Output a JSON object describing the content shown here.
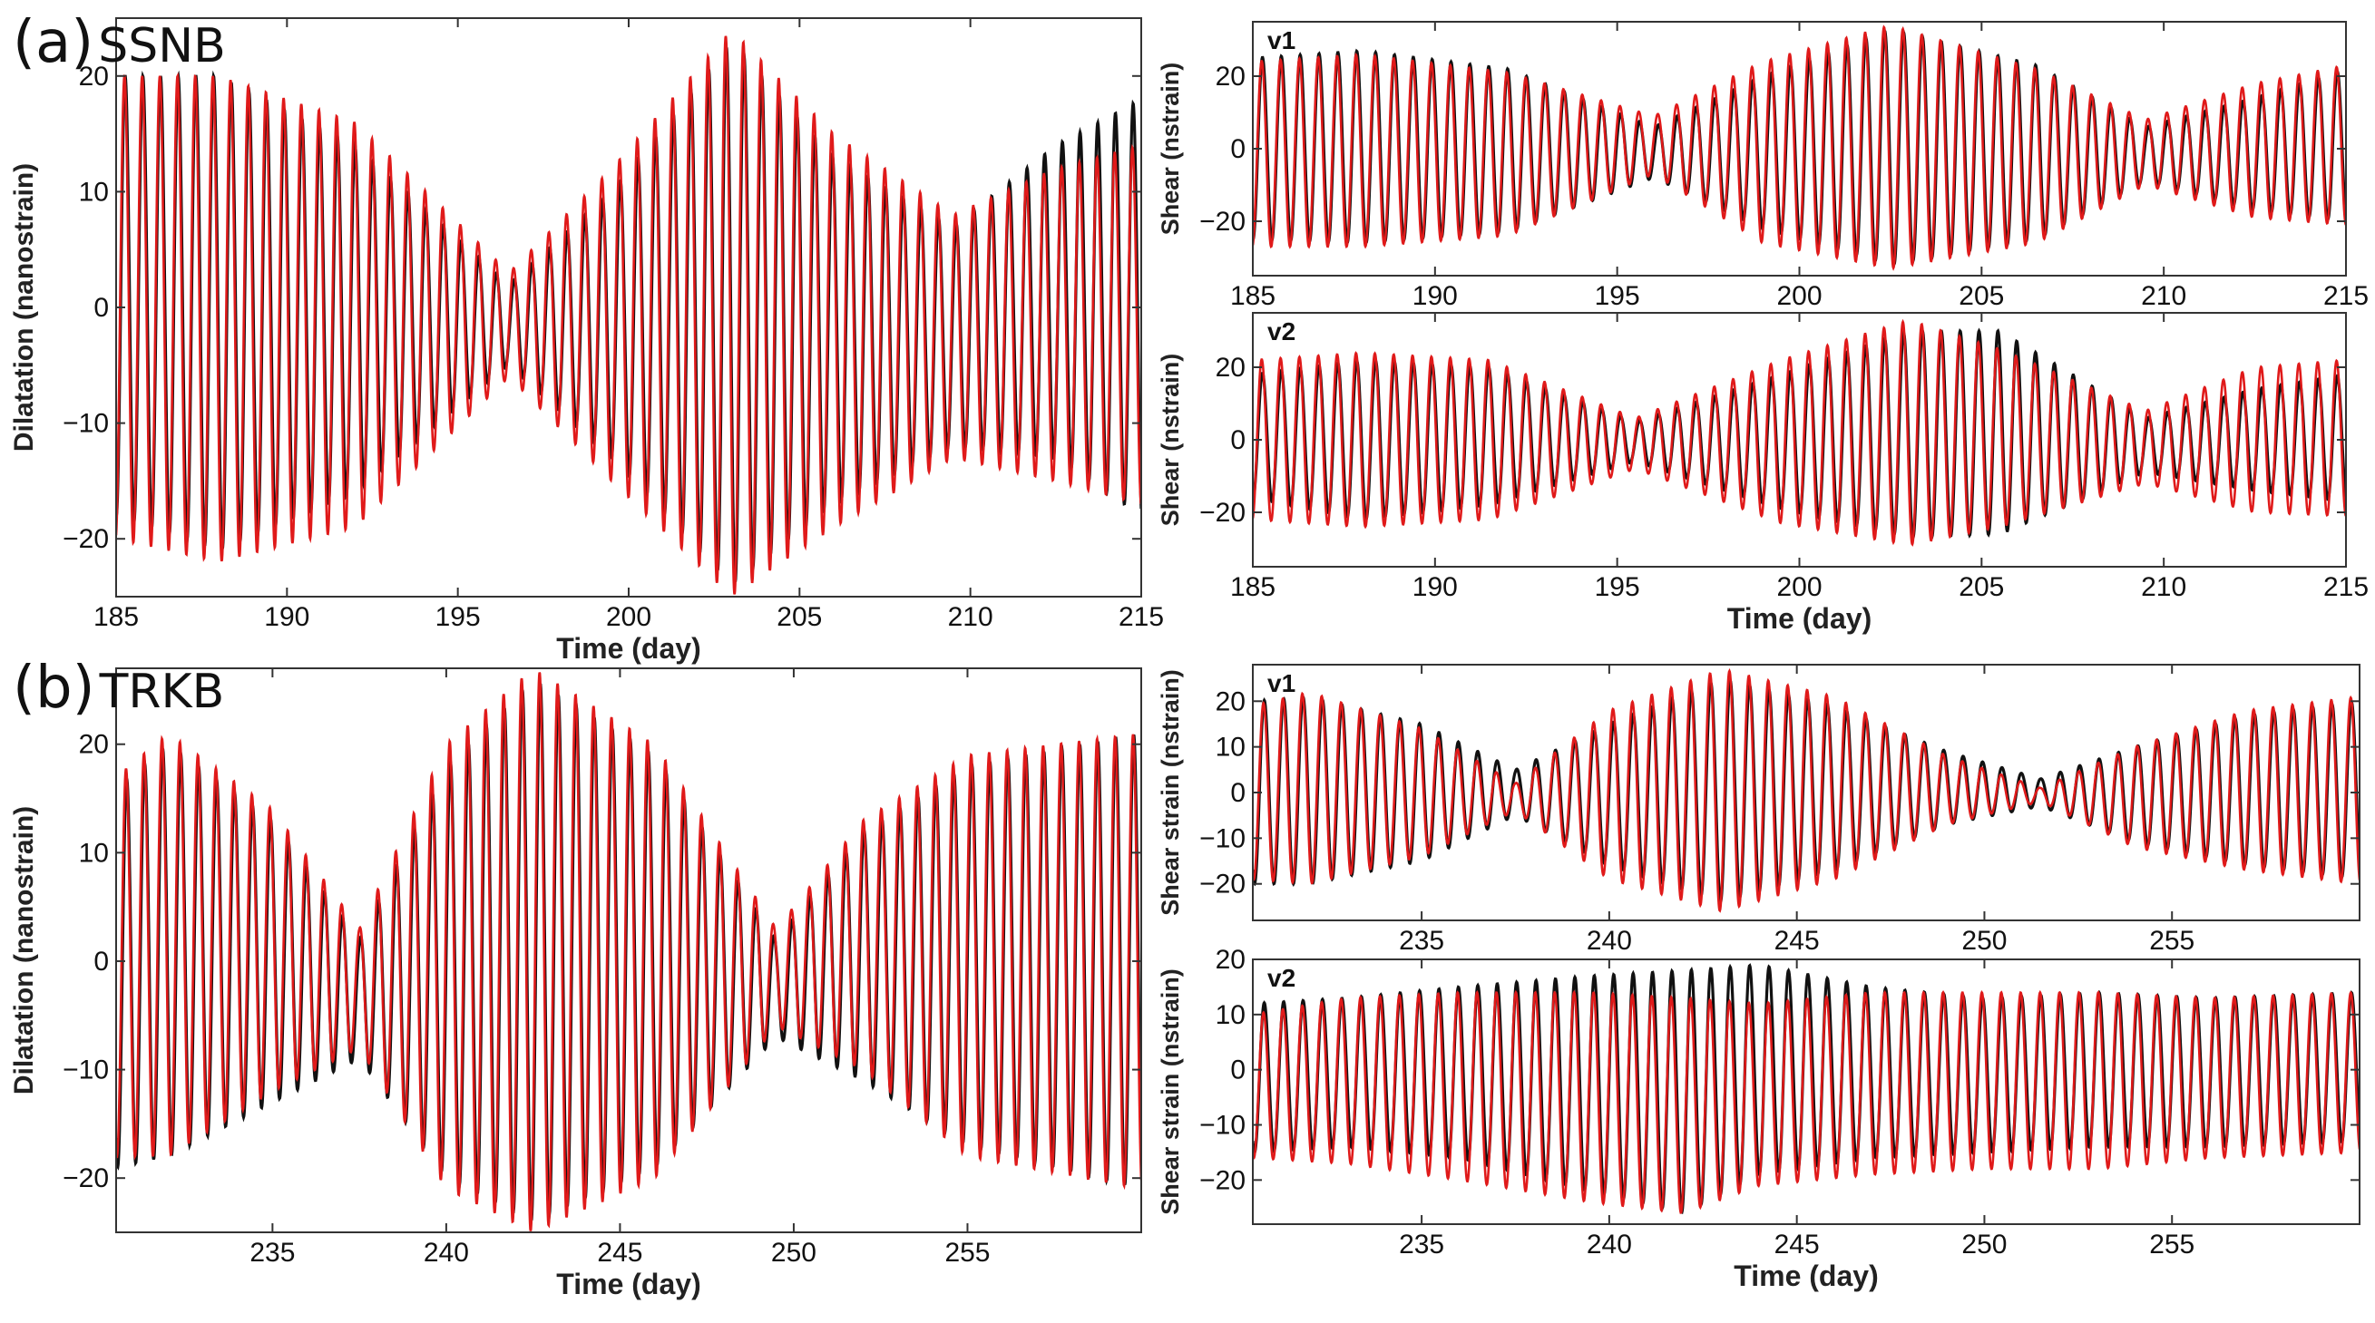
{
  "panels": [
    {
      "letter": "(a)",
      "station": "SSNB"
    },
    {
      "letter": "(b)",
      "station": "TRKB"
    }
  ],
  "colors": {
    "black_series": "#111111",
    "red_series": "#e01a1a",
    "axes": "#333333"
  },
  "chart_data": [
    {
      "id": "a-dil",
      "type": "line",
      "panel": "(a)",
      "title": "",
      "xlabel": "Time (day)",
      "ylabel": "Dilatation (nanostrain)",
      "corner_label": "",
      "xlim": [
        185,
        215
      ],
      "ylim": [
        -25,
        25
      ],
      "xticks": [
        185,
        190,
        195,
        200,
        205,
        210,
        215
      ],
      "xtick_labels": [
        "185",
        "190",
        "195",
        "200",
        "205",
        "210",
        "215"
      ],
      "yticks": [
        -20,
        -10,
        0,
        10,
        20
      ],
      "ytick_labels": [
        "−20",
        "−10",
        "0",
        "10",
        "20"
      ],
      "grid": false,
      "series": [
        {
          "color": "black",
          "envelope": {
            "t": [
              185,
              188,
              192,
              196.5,
              199.5,
              203,
              206,
              209.5,
              212.5,
              215
            ],
            "upper": [
              20,
              20,
              14,
              2,
              10,
              23,
              13,
              7,
              14,
              18
            ],
            "lower": [
              -18,
              -21,
              -16,
              -5,
              -13,
              -24,
              -17,
              -12,
              -13,
              -18
            ]
          }
        },
        {
          "color": "red",
          "envelope": {
            "t": [
              185,
              188,
              192,
              196.5,
              199.5,
              203,
              206,
              209.5,
              212.5,
              215
            ],
            "upper": [
              20,
              20,
              16,
              3,
              12,
              24,
              15,
              8,
              12,
              14
            ],
            "lower": [
              -20,
              -22,
              -19,
              -6,
              -15,
              -25,
              -19,
              -13,
              -15,
              -17
            ]
          }
        }
      ]
    },
    {
      "id": "a-v1",
      "type": "line",
      "panel": "(a)",
      "title": "",
      "xlabel": "",
      "ylabel": "Shear (nstrain)",
      "corner_label": "v1",
      "xlim": [
        185,
        215
      ],
      "ylim": [
        -35,
        35
      ],
      "xticks": [
        185,
        190,
        195,
        200,
        205,
        210,
        215
      ],
      "xtick_labels": [
        "185",
        "190",
        "195",
        "200",
        "205",
        "210",
        "215"
      ],
      "yticks": [
        -20,
        0,
        20
      ],
      "ytick_labels": [
        "−20",
        "0",
        "20"
      ],
      "grid": false,
      "series": [
        {
          "color": "black",
          "envelope": {
            "t": [
              185,
              188,
              192,
              196,
              199,
              202.5,
              206.5,
              209.5,
              212.5,
              215
            ],
            "upper": [
              25,
              27,
              22,
              6,
              20,
              33,
              23,
              6,
              14,
              22
            ],
            "lower": [
              -25,
              -26,
              -23,
              -8,
              -22,
              -32,
              -25,
              -9,
              -17,
              -20
            ]
          }
        },
        {
          "color": "red",
          "envelope": {
            "t": [
              185,
              188,
              192,
              196,
              199,
              202.5,
              206.5,
              209.5,
              212.5,
              215
            ],
            "upper": [
              24,
              26,
              21,
              9,
              24,
              34,
              22,
              8,
              18,
              23
            ],
            "lower": [
              -27,
              -27,
              -24,
              -7,
              -26,
              -33,
              -26,
              -10,
              -19,
              -21
            ]
          }
        }
      ]
    },
    {
      "id": "a-v2",
      "type": "line",
      "panel": "(a)",
      "title": "",
      "xlabel": "Time (day)",
      "ylabel": "Shear (nstrain)",
      "corner_label": "v2",
      "xlim": [
        185,
        215
      ],
      "ylim": [
        -35,
        35
      ],
      "xticks": [
        185,
        190,
        195,
        200,
        205,
        210,
        215
      ],
      "xtick_labels": [
        "185",
        "190",
        "195",
        "200",
        "205",
        "210",
        "215"
      ],
      "yticks": [
        -20,
        0,
        20
      ],
      "ytick_labels": [
        "−20",
        "0",
        "20"
      ],
      "grid": false,
      "series": [
        {
          "color": "black",
          "envelope": {
            "t": [
              185,
              188,
              191.5,
              195.5,
              199.5,
              203,
              205.5,
              209.5,
              212.5,
              215
            ],
            "upper": [
              18,
              22,
              20,
              5,
              18,
              30,
              30,
              6,
              14,
              18
            ],
            "lower": [
              -16,
              -22,
              -18,
              -6,
              -19,
              -27,
              -26,
              -9,
              -14,
              -17
            ]
          }
        },
        {
          "color": "red",
          "envelope": {
            "t": [
              185,
              188,
              191.5,
              195.5,
              199.5,
              203,
              205.5,
              209.5,
              212.5,
              215
            ],
            "upper": [
              22,
              24,
              22,
              6,
              22,
              33,
              25,
              8,
              20,
              22
            ],
            "lower": [
              -22,
              -24,
              -22,
              -8,
              -23,
              -29,
              -24,
              -12,
              -20,
              -21
            ]
          }
        }
      ]
    },
    {
      "id": "b-dil",
      "type": "line",
      "panel": "(b)",
      "title": "",
      "xlabel": "Time (day)",
      "ylabel": "Dilatation (nanostrain)",
      "corner_label": "",
      "xlim": [
        230.5,
        260
      ],
      "ylim": [
        -25,
        27
      ],
      "xticks": [
        235,
        240,
        245,
        250,
        255
      ],
      "xtick_labels": [
        "235",
        "240",
        "245",
        "250",
        "255"
      ],
      "yticks": [
        -20,
        -10,
        0,
        10,
        20
      ],
      "ytick_labels": [
        "−20",
        "−10",
        "0",
        "10",
        "20"
      ],
      "grid": false,
      "series": [
        {
          "color": "black",
          "envelope": {
            "t": [
              230.5,
              232,
              235,
              237.5,
              240,
              242.5,
              246,
              249.5,
              252,
              255,
              260
            ],
            "upper": [
              16,
              20,
              13,
              2,
              18,
              26,
              19,
              2,
              12,
              18,
              21
            ],
            "lower": [
              -19,
              -18,
              -13,
              -9,
              -20,
              -24,
              -19,
              -7,
              -11,
              -17,
              -21
            ]
          }
        },
        {
          "color": "red",
          "envelope": {
            "t": [
              230.5,
              232,
              235,
              237.5,
              240,
              242.5,
              246,
              249.5,
              252,
              255,
              260
            ],
            "upper": [
              17,
              21,
              14,
              3,
              20,
              27,
              20,
              3,
              13,
              19,
              21
            ],
            "lower": [
              -18,
              -18,
              -12,
              -8,
              -21,
              -25,
              -20,
              -6,
              -10,
              -18,
              -21
            ]
          }
        }
      ]
    },
    {
      "id": "b-v1",
      "type": "line",
      "panel": "(b)",
      "title": "",
      "xlabel": "",
      "ylabel": "Shear strain (nstrain)",
      "corner_label": "v1",
      "xlim": [
        230.5,
        260
      ],
      "ylim": [
        -28,
        28
      ],
      "xticks": [
        235,
        240,
        245,
        250,
        255
      ],
      "xtick_labels": [
        "235",
        "240",
        "245",
        "250",
        "255"
      ],
      "yticks": [
        -20,
        -10,
        0,
        10,
        20
      ],
      "ytick_labels": [
        "−20",
        "−10",
        "0",
        "10",
        "20"
      ],
      "grid": false,
      "series": [
        {
          "color": "black",
          "envelope": {
            "t": [
              230.5,
              232,
              235,
              237.5,
              240,
              243,
              246,
              249,
              251.5,
              254,
              257,
              260
            ],
            "upper": [
              20,
              21,
              15,
              5,
              15,
              25,
              19,
              9,
              3,
              10,
              17,
              20
            ],
            "lower": [
              -20,
              -20,
              -15,
              -5,
              -16,
              -24,
              -17,
              -7,
              -3,
              -11,
              -16,
              -19
            ]
          }
        },
        {
          "color": "red",
          "envelope": {
            "t": [
              230.5,
              232,
              235,
              237.5,
              240,
              243,
              246,
              249,
              251.5,
              254,
              257,
              260
            ],
            "upper": [
              19,
              22,
              14,
              2,
              18,
              27,
              21,
              8,
              1,
              10,
              18,
              21
            ],
            "lower": [
              -19,
              -20,
              -14,
              -4,
              -19,
              -26,
              -19,
              -7,
              -2,
              -12,
              -17,
              -20
            ]
          }
        }
      ]
    },
    {
      "id": "b-v2",
      "type": "line",
      "panel": "(b)",
      "title": "",
      "xlabel": "Time (day)",
      "ylabel": "Shear strain (nstrain)",
      "corner_label": "v2",
      "xlim": [
        230.5,
        260
      ],
      "ylim": [
        -28,
        20
      ],
      "xticks": [
        235,
        240,
        245,
        250,
        255
      ],
      "xtick_labels": [
        "235",
        "240",
        "245",
        "250",
        "255"
      ],
      "yticks": [
        -20,
        -10,
        0,
        10,
        20
      ],
      "ytick_labels": [
        "−20",
        "−10",
        "0",
        "10",
        "20"
      ],
      "grid": false,
      "series": [
        {
          "color": "black",
          "envelope": {
            "t": [
              230.5,
              233,
              236,
              239.5,
              242,
              244,
              247,
              250,
              253,
              256,
              260
            ],
            "upper": [
              12,
              13,
              15,
              17,
              18,
              19,
              15,
              13,
              14,
              13,
              14
            ],
            "lower": [
              -15,
              -14,
              -16,
              -22,
              -26,
              -19,
              -16,
              -15,
              -14,
              -14,
              -13
            ]
          }
        },
        {
          "color": "red",
          "envelope": {
            "t": [
              230.5,
              233,
              236,
              239.5,
              242,
              244,
              247,
              250,
              253,
              256,
              260
            ],
            "upper": [
              10,
              13,
              14,
              14,
              13,
              12,
              14,
              14,
              14,
              13,
              14
            ],
            "lower": [
              -16,
              -17,
              -20,
              -24,
              -26,
              -21,
              -19,
              -18,
              -18,
              -16,
              -15
            ]
          }
        }
      ]
    }
  ]
}
